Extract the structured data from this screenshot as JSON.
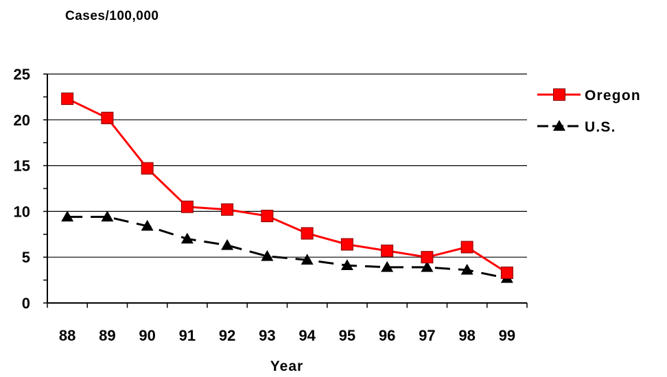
{
  "chart_data": {
    "type": "line",
    "ylabel": "Cases/100,000",
    "xlabel": "Year",
    "categories": [
      "88",
      "89",
      "90",
      "91",
      "92",
      "93",
      "94",
      "95",
      "96",
      "97",
      "98",
      "99"
    ],
    "ylim": [
      0,
      25
    ],
    "yticks": [
      "0",
      "5",
      "10",
      "15",
      "20",
      "25"
    ],
    "grid": true,
    "legend_position": "top-right",
    "series": [
      {
        "name": "Oregon",
        "color": "#ff0000",
        "marker": "square",
        "line_style": "solid",
        "values": [
          22.3,
          20.2,
          14.7,
          10.5,
          10.2,
          9.5,
          7.6,
          6.4,
          5.7,
          5.0,
          6.1,
          3.3
        ]
      },
      {
        "name": "U.S.",
        "color": "#000000",
        "marker": "triangle",
        "line_style": "dashed",
        "values": [
          9.4,
          9.4,
          8.4,
          7.0,
          6.3,
          5.1,
          4.7,
          4.1,
          3.9,
          3.9,
          3.6,
          2.7
        ]
      }
    ]
  }
}
